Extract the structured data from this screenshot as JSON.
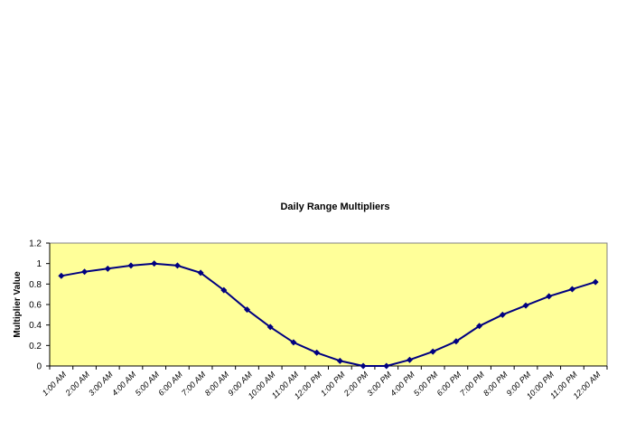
{
  "chart_data": {
    "type": "line",
    "title": "Daily Range Multipliers",
    "xlabel": "",
    "ylabel": "Multiplier Value",
    "ylim": [
      0,
      1.2
    ],
    "yticks": [
      "0",
      "0.2",
      "0.4",
      "0.6",
      "0.8",
      "1",
      "1.2"
    ],
    "grid": false,
    "legend": "none",
    "categories": [
      "1:00 AM",
      "2:00 AM",
      "3:00 AM",
      "4:00 AM",
      "5:00 AM",
      "6:00 AM",
      "7:00 AM",
      "8:00 AM",
      "9:00 AM",
      "10:00 AM",
      "11:00 AM",
      "12:00 PM",
      "1:00 PM",
      "2:00 PM",
      "3:00 PM",
      "4:00 PM",
      "5:00 PM",
      "6:00 PM",
      "7:00 PM",
      "8:00 PM",
      "9:00 PM",
      "10:00 PM",
      "11:00 PM",
      "12:00 AM"
    ],
    "series": [
      {
        "values": [
          0.88,
          0.92,
          0.95,
          0.98,
          1.0,
          0.98,
          0.91,
          0.74,
          0.55,
          0.38,
          0.23,
          0.13,
          0.05,
          0.0,
          0.0,
          0.06,
          0.14,
          0.24,
          0.39,
          0.5,
          0.59,
          0.68,
          0.75,
          0.82
        ]
      }
    ],
    "colors": {
      "plot_background": "#FFFF99",
      "line": "#000080",
      "marker": "#000080"
    }
  }
}
